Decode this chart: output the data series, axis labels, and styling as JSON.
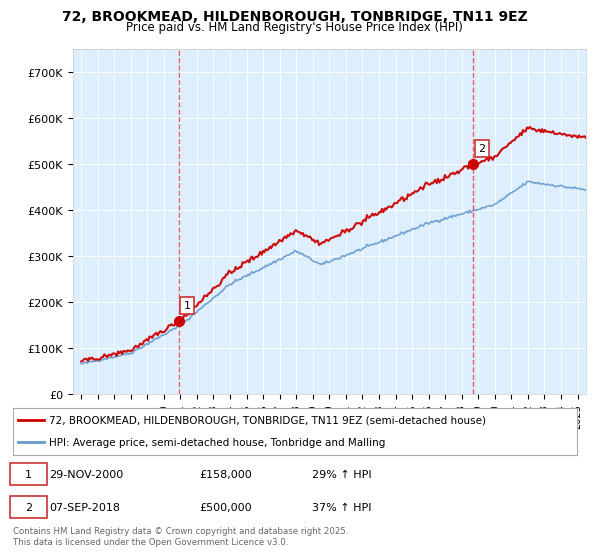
{
  "title": "72, BROOKMEAD, HILDENBOROUGH, TONBRIDGE, TN11 9EZ",
  "subtitle": "Price paid vs. HM Land Registry's House Price Index (HPI)",
  "legend_label_red": "72, BROOKMEAD, HILDENBOROUGH, TONBRIDGE, TN11 9EZ (semi-detached house)",
  "legend_label_blue": "HPI: Average price, semi-detached house, Tonbridge and Malling",
  "footer": "Contains HM Land Registry data © Crown copyright and database right 2025.\nThis data is licensed under the Open Government Licence v3.0.",
  "transactions": [
    {
      "num": 1,
      "date": "29-NOV-2000",
      "price": "£158,000",
      "hpi_change": "29% ↑ HPI",
      "x_year": 2000.9,
      "price_val": 158000
    },
    {
      "num": 2,
      "date": "07-SEP-2018",
      "price": "£500,000",
      "hpi_change": "37% ↑ HPI",
      "x_year": 2018.7,
      "price_val": 500000
    }
  ],
  "red_color": "#cc0000",
  "blue_color": "#6699cc",
  "vline_color": "#ee4444",
  "plot_bg": "#ddeeff",
  "ylim": [
    0,
    750000
  ],
  "xlim": [
    1994.5,
    2025.5
  ],
  "yticks": [
    0,
    100000,
    200000,
    300000,
    400000,
    500000,
    600000,
    700000
  ],
  "ytick_labels": [
    "£0",
    "£100K",
    "£200K",
    "£300K",
    "£400K",
    "£500K",
    "£600K",
    "£700K"
  ],
  "xticks": [
    1995,
    1996,
    1997,
    1998,
    1999,
    2000,
    2001,
    2002,
    2003,
    2004,
    2005,
    2006,
    2007,
    2008,
    2009,
    2010,
    2011,
    2012,
    2013,
    2014,
    2015,
    2016,
    2017,
    2018,
    2019,
    2020,
    2021,
    2022,
    2023,
    2024,
    2025
  ]
}
